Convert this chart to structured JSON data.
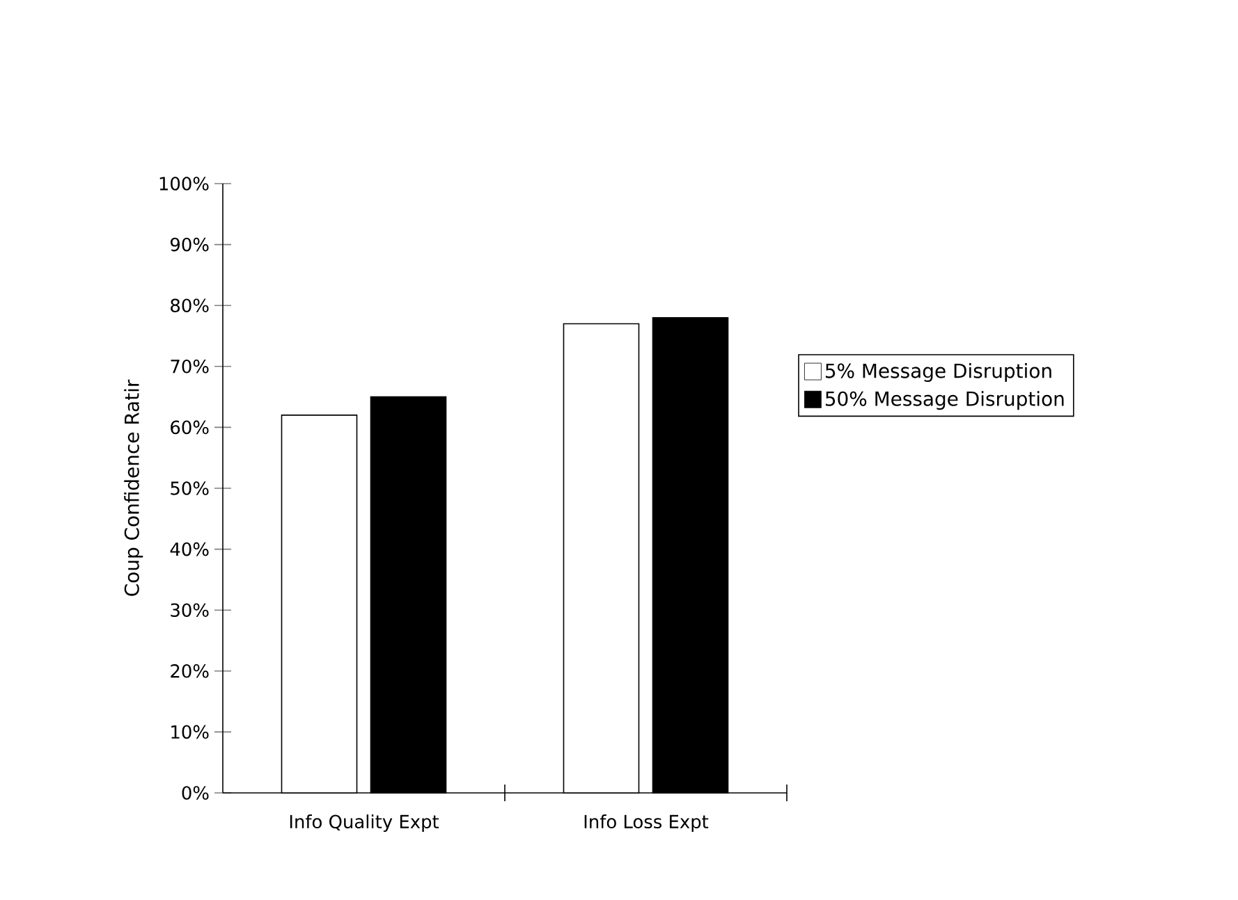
{
  "chart_data": {
    "type": "bar",
    "ylabel": "Coup Confidence Ratir",
    "categories": [
      "Info Quality Expt",
      "Info Loss Expt"
    ],
    "series": [
      {
        "name": "5% Message Disruption",
        "color": "#ffffff",
        "values": [
          62,
          77
        ]
      },
      {
        "name": "50% Message Disruption",
        "color": "#000000",
        "values": [
          65,
          78
        ]
      }
    ],
    "ylim": [
      0,
      100
    ],
    "yticks": [
      {
        "value": 0,
        "label": "0%"
      },
      {
        "value": 10,
        "label": "10%"
      },
      {
        "value": 20,
        "label": "20%"
      },
      {
        "value": 30,
        "label": "30%"
      },
      {
        "value": 40,
        "label": "40%"
      },
      {
        "value": 50,
        "label": "50%"
      },
      {
        "value": 60,
        "label": "60%"
      },
      {
        "value": 70,
        "label": "70%"
      },
      {
        "value": 80,
        "label": "80%"
      },
      {
        "value": 90,
        "label": "90%"
      },
      {
        "value": 100,
        "label": "100%"
      }
    ],
    "legend": "right",
    "grid": false
  }
}
